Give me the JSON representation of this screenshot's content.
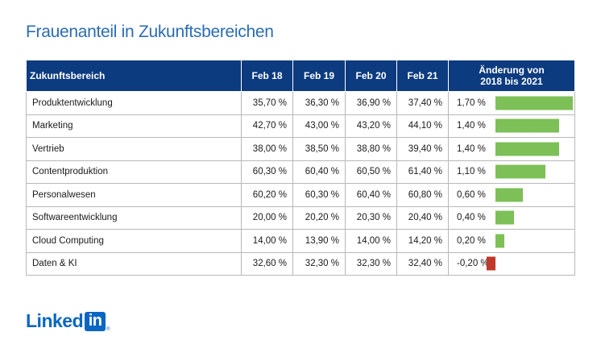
{
  "title": "Frauenanteil in Zukunftsbereichen",
  "colors": {
    "positive": "#7dc057",
    "negative": "#c0392b",
    "header": "#0c3b7f",
    "title": "#2a6cb5"
  },
  "logo": {
    "text": "Linked",
    "box": "in",
    "reg": "®"
  },
  "chart_data": {
    "type": "table",
    "columns": [
      "Zukunftsbereich",
      "Feb 18",
      "Feb 19",
      "Feb 20",
      "Feb 21",
      "Änderung von 2018 bis 2021"
    ],
    "change_header_lines": [
      "Änderung von",
      "2018 bis 2021"
    ],
    "rows": [
      {
        "area": "Produktentwicklung",
        "feb18": "35,70 %",
        "feb19": "36,30 %",
        "feb20": "36,90 %",
        "feb21": "37,40 %",
        "change_label": "1,70 %",
        "change": 1.7
      },
      {
        "area": "Marketing",
        "feb18": "42,70 %",
        "feb19": "43,00 %",
        "feb20": "43,20 %",
        "feb21": "44,10 %",
        "change_label": "1,40 %",
        "change": 1.4
      },
      {
        "area": "Vertrieb",
        "feb18": "38,00 %",
        "feb19": "38,50 %",
        "feb20": "38,80 %",
        "feb21": "39,40 %",
        "change_label": "1,40 %",
        "change": 1.4
      },
      {
        "area": "Contentproduktion",
        "feb18": "60,30 %",
        "feb19": "60,40 %",
        "feb20": "60,50 %",
        "feb21": "61,40 %",
        "change_label": "1,10 %",
        "change": 1.1
      },
      {
        "area": "Personalwesen",
        "feb18": "60,20 %",
        "feb19": "60,30 %",
        "feb20": "60,40 %",
        "feb21": "60,80 %",
        "change_label": "0,60 %",
        "change": 0.6
      },
      {
        "area": "Softwareentwicklung",
        "feb18": "20,00 %",
        "feb19": "20,20 %",
        "feb20": "20,30 %",
        "feb21": "20,40 %",
        "change_label": "0,40 %",
        "change": 0.4
      },
      {
        "area": "Cloud Computing",
        "feb18": "14,00 %",
        "feb19": "13,90 %",
        "feb20": "14,00 %",
        "feb21": "14,20 %",
        "change_label": "0,20 %",
        "change": 0.2
      },
      {
        "area": "Daten & KI",
        "feb18": "32,60 %",
        "feb19": "32,30 %",
        "feb20": "32,30 %",
        "feb21": "32,40 %",
        "change_label": "-0,20 %",
        "change": -0.2
      }
    ]
  }
}
